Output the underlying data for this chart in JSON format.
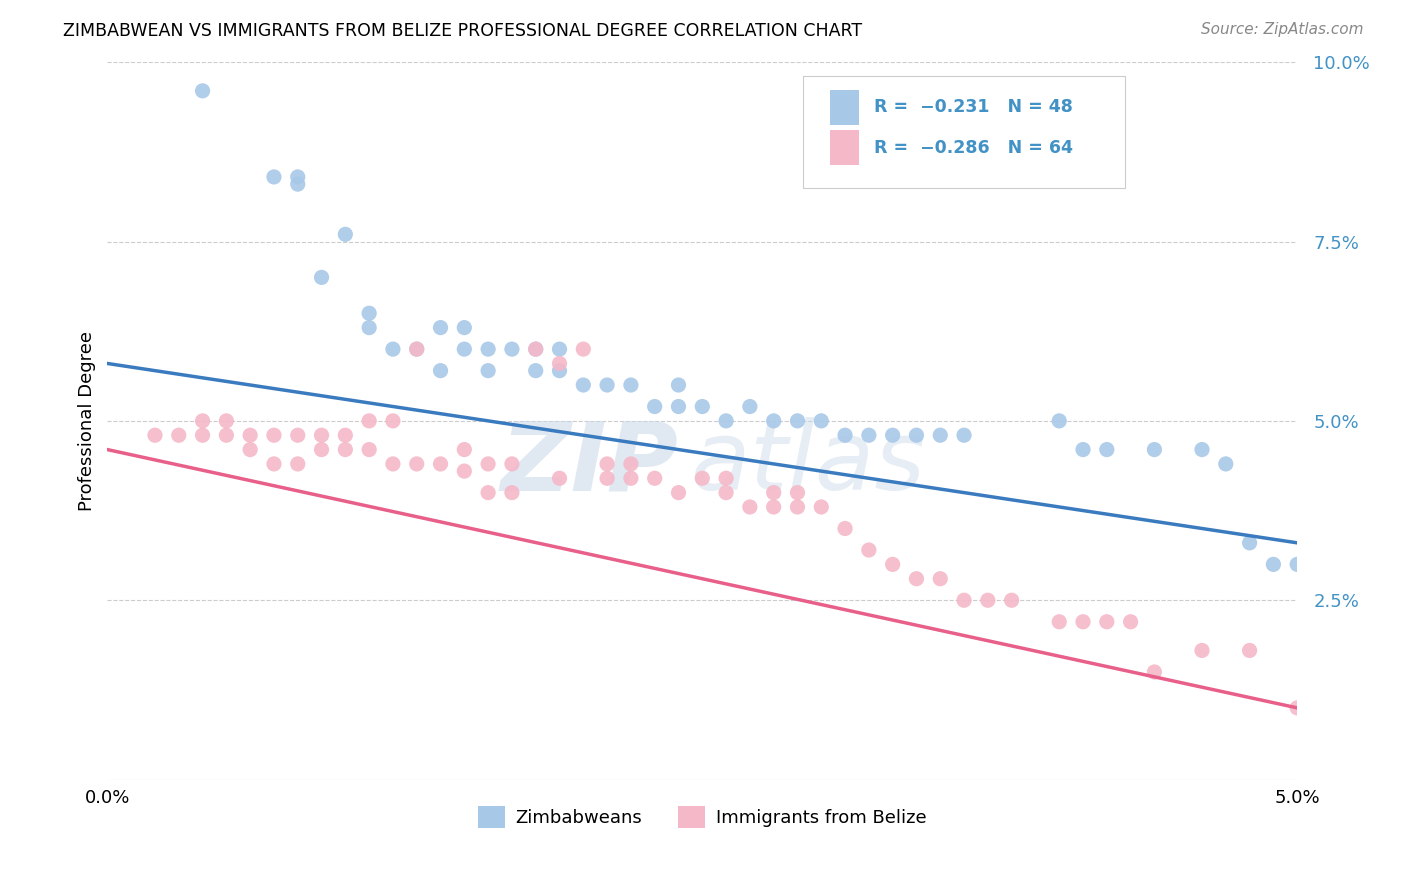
{
  "title": "ZIMBABWEAN VS IMMIGRANTS FROM BELIZE PROFESSIONAL DEGREE CORRELATION CHART",
  "source": "Source: ZipAtlas.com",
  "ylabel": "Professional Degree",
  "x_min": 0.0,
  "x_max": 0.05,
  "y_min": 0.0,
  "y_max": 0.1,
  "y_ticks": [
    0.025,
    0.05,
    0.075,
    0.1
  ],
  "y_tick_labels": [
    "2.5%",
    "5.0%",
    "7.5%",
    "10.0%"
  ],
  "blue_color": "#a8c8e8",
  "pink_color": "#f5b8c8",
  "blue_line_color": "#3a7bbf",
  "pink_line_color": "#e8608a",
  "tick_label_color": "#4292c6",
  "legend_label_blue": "Zimbabweans",
  "legend_label_pink": "Immigrants from Belize",
  "watermark_zip": "ZIP",
  "watermark_atlas": "atlas",
  "blue_scatter_x": [
    0.004,
    0.007,
    0.008,
    0.008,
    0.009,
    0.01,
    0.011,
    0.011,
    0.012,
    0.013,
    0.014,
    0.014,
    0.015,
    0.015,
    0.016,
    0.016,
    0.017,
    0.018,
    0.018,
    0.019,
    0.019,
    0.02,
    0.021,
    0.022,
    0.023,
    0.024,
    0.024,
    0.025,
    0.026,
    0.027,
    0.028,
    0.029,
    0.03,
    0.031,
    0.032,
    0.033,
    0.034,
    0.035,
    0.036,
    0.04,
    0.041,
    0.042,
    0.044,
    0.046,
    0.047,
    0.048,
    0.049,
    0.05
  ],
  "blue_scatter_y": [
    0.096,
    0.084,
    0.083,
    0.084,
    0.07,
    0.076,
    0.063,
    0.065,
    0.06,
    0.06,
    0.057,
    0.063,
    0.06,
    0.063,
    0.057,
    0.06,
    0.06,
    0.057,
    0.06,
    0.057,
    0.06,
    0.055,
    0.055,
    0.055,
    0.052,
    0.052,
    0.055,
    0.052,
    0.05,
    0.052,
    0.05,
    0.05,
    0.05,
    0.048,
    0.048,
    0.048,
    0.048,
    0.048,
    0.048,
    0.05,
    0.046,
    0.046,
    0.046,
    0.046,
    0.044,
    0.033,
    0.03,
    0.03
  ],
  "pink_scatter_x": [
    0.002,
    0.003,
    0.004,
    0.004,
    0.005,
    0.005,
    0.006,
    0.006,
    0.007,
    0.007,
    0.008,
    0.008,
    0.009,
    0.009,
    0.01,
    0.01,
    0.011,
    0.011,
    0.012,
    0.012,
    0.013,
    0.013,
    0.014,
    0.015,
    0.015,
    0.016,
    0.016,
    0.017,
    0.017,
    0.018,
    0.019,
    0.019,
    0.02,
    0.021,
    0.021,
    0.022,
    0.022,
    0.023,
    0.024,
    0.025,
    0.026,
    0.026,
    0.027,
    0.028,
    0.028,
    0.029,
    0.029,
    0.03,
    0.031,
    0.032,
    0.033,
    0.034,
    0.035,
    0.036,
    0.037,
    0.038,
    0.04,
    0.041,
    0.042,
    0.043,
    0.044,
    0.046,
    0.048,
    0.05
  ],
  "pink_scatter_y": [
    0.048,
    0.048,
    0.048,
    0.05,
    0.048,
    0.05,
    0.046,
    0.048,
    0.044,
    0.048,
    0.044,
    0.048,
    0.046,
    0.048,
    0.046,
    0.048,
    0.046,
    0.05,
    0.044,
    0.05,
    0.044,
    0.06,
    0.044,
    0.043,
    0.046,
    0.04,
    0.044,
    0.04,
    0.044,
    0.06,
    0.042,
    0.058,
    0.06,
    0.042,
    0.044,
    0.042,
    0.044,
    0.042,
    0.04,
    0.042,
    0.04,
    0.042,
    0.038,
    0.038,
    0.04,
    0.038,
    0.04,
    0.038,
    0.035,
    0.032,
    0.03,
    0.028,
    0.028,
    0.025,
    0.025,
    0.025,
    0.022,
    0.022,
    0.022,
    0.022,
    0.015,
    0.018,
    0.018,
    0.01
  ],
  "blue_trend_x": [
    0.0,
    0.05
  ],
  "blue_trend_y": [
    0.058,
    0.033
  ],
  "pink_trend_x": [
    0.0,
    0.05
  ],
  "pink_trend_y": [
    0.046,
    0.01
  ]
}
